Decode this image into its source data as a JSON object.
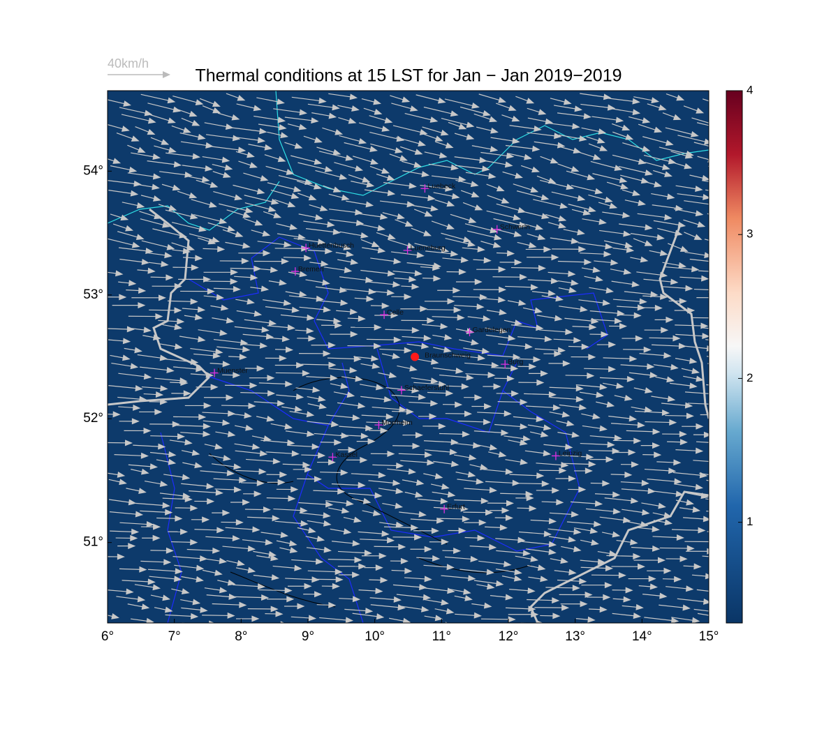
{
  "header": {
    "title": "Thermal conditions at 15 LST for Jan − Jan  2019−2019",
    "reference_arrow": "40km/h"
  },
  "map": {
    "lonlim": [
      6,
      15
    ],
    "latlim": [
      50.35,
      54.65
    ],
    "lonticks": [
      {
        "value": 6,
        "label": "6°"
      },
      {
        "value": 7,
        "label": "7°"
      },
      {
        "value": 8,
        "label": "8°"
      },
      {
        "value": 9,
        "label": "9°"
      },
      {
        "value": 10,
        "label": "10°"
      },
      {
        "value": 11,
        "label": "11°"
      },
      {
        "value": 12,
        "label": "12°"
      },
      {
        "value": 13,
        "label": "13°"
      },
      {
        "value": 14,
        "label": "14°"
      },
      {
        "value": 15,
        "label": "15°"
      }
    ],
    "latticks": [
      {
        "value": 51,
        "label": "51°"
      },
      {
        "value": 52,
        "label": "52°"
      },
      {
        "value": 53,
        "label": "53°"
      },
      {
        "value": 54,
        "label": "54°"
      }
    ],
    "background": "#0d3a6b",
    "cities": [
      {
        "name": "Luebeck",
        "lon": 10.75,
        "lat": 53.86
      },
      {
        "name": "Schwerin",
        "lon": 11.83,
        "lat": 53.53
      },
      {
        "name": "Huettenbusch",
        "lon": 8.97,
        "lat": 53.38
      },
      {
        "name": "Lueneburg",
        "lon": 10.49,
        "lat": 53.36
      },
      {
        "name": "Bremen",
        "lon": 8.81,
        "lat": 53.19
      },
      {
        "name": "Celle",
        "lon": 10.14,
        "lat": 52.84
      },
      {
        "name": "Gardelegen",
        "lon": 11.42,
        "lat": 52.7
      },
      {
        "name": "Braunschweig",
        "lon": 10.6,
        "lat": 52.5,
        "marker": "dot"
      },
      {
        "name": "Burg",
        "lon": 11.95,
        "lat": 52.44
      },
      {
        "name": "Muenster",
        "lon": 7.6,
        "lat": 52.37
      },
      {
        "name": "Schaeferstuhl",
        "lon": 10.4,
        "lat": 52.23
      },
      {
        "name": "Morrheim",
        "lon": 10.06,
        "lat": 51.95
      },
      {
        "name": "Kassel",
        "lon": 9.37,
        "lat": 51.69
      },
      {
        "name": "Leipzig",
        "lon": 12.71,
        "lat": 51.7
      },
      {
        "name": "Erfurt",
        "lon": 11.04,
        "lat": 51.27
      }
    ]
  },
  "colorbar": {
    "clim": [
      0.3,
      4.0
    ],
    "ticks": [
      1,
      2,
      3,
      4
    ]
  }
}
